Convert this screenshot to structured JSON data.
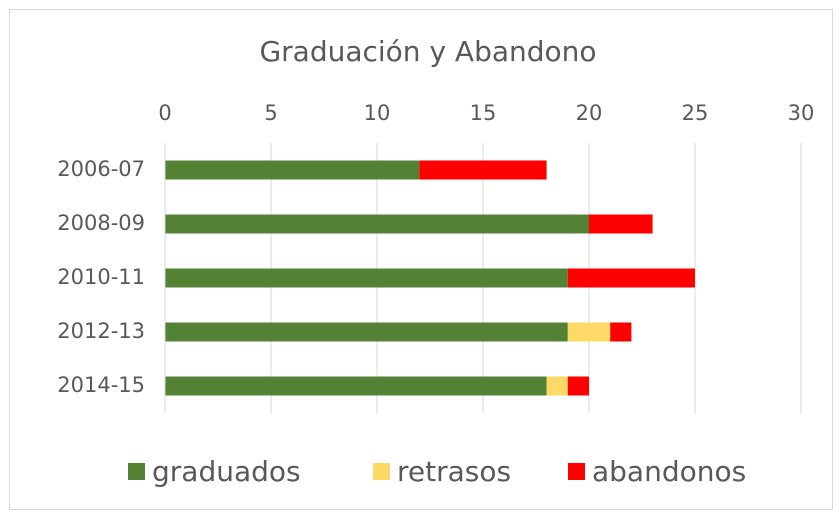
{
  "chart_data": {
    "type": "stacked_barh",
    "title": "Graduación y Abandono",
    "categories": [
      "2006-07",
      "2008-09",
      "2010-11",
      "2012-13",
      "2014-15"
    ],
    "series": [
      {
        "name": "graduados",
        "color": "#548235",
        "values": [
          12,
          20,
          19,
          19,
          18
        ]
      },
      {
        "name": "retrasos",
        "color": "#ffd966",
        "values": [
          0,
          0,
          0,
          2,
          1
        ]
      },
      {
        "name": "abandonos",
        "color": "#ff0000",
        "values": [
          6,
          3,
          6,
          1,
          1
        ]
      }
    ],
    "xlim": [
      0,
      30
    ],
    "xticks": [
      0,
      5,
      10,
      15,
      20,
      25,
      30
    ],
    "grid": true,
    "legend": "bottom"
  }
}
